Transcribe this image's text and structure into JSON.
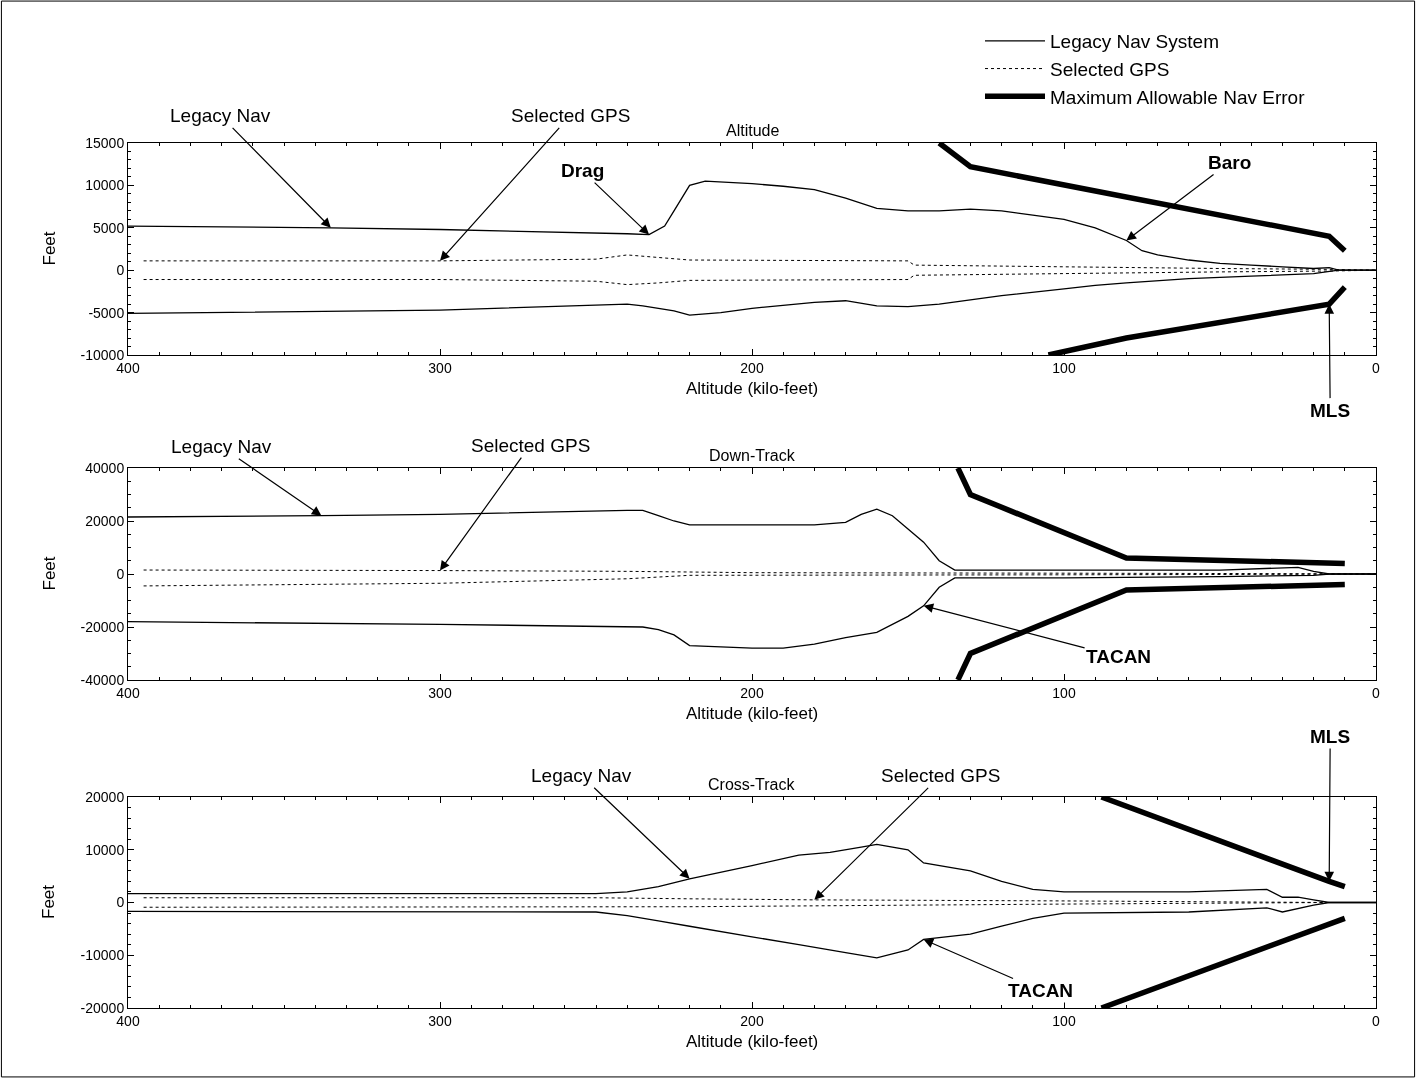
{
  "chart_data": [
    {
      "type": "line",
      "title": "Altitude",
      "xlabel": "Altitude (kilo-feet)",
      "ylabel": "Feet",
      "legend": "top right",
      "grid": false,
      "marker": "none",
      "xlim": [
        400,
        0
      ],
      "xticks": [
        400,
        300,
        200,
        100,
        0
      ],
      "ylim": [
        -10000,
        15000
      ],
      "yticks": [
        -10000,
        -5000,
        0,
        5000,
        10000,
        15000
      ],
      "series": [
        {
          "name": "Legacy Nav System",
          "color": "#000000",
          "line_style": "solid",
          "x": [
            400,
            335,
            300,
            240,
            233,
            228,
            225,
            220,
            215,
            200,
            190,
            180,
            170,
            160,
            150,
            140,
            130,
            120,
            110,
            100,
            90,
            80,
            75,
            70,
            60,
            50,
            40,
            30,
            20,
            15,
            12,
            0
          ],
          "values": [
            5200,
            5000,
            4800,
            4300,
            4200,
            5200,
            7000,
            10000,
            10500,
            10200,
            9900,
            9500,
            8500,
            7300,
            7000,
            7000,
            7200,
            7000,
            6500,
            6000,
            5000,
            3500,
            2300,
            1800,
            1200,
            800,
            600,
            400,
            200,
            300,
            0,
            0
          ]
        },
        {
          "name": "Selected GPS",
          "color": "#000000",
          "line_style": "dotted",
          "x": [
            395,
            300,
            250,
            240,
            230,
            220,
            150,
            148,
            100,
            50,
            15,
            0
          ],
          "values": [
            1100,
            1100,
            1300,
            1800,
            1500,
            1200,
            1100,
            600,
            400,
            200,
            100,
            0
          ]
        },
        {
          "name": "Maximum Allowable Nav Error",
          "color": "#000000",
          "line_style": "solid",
          "x": [
            140,
            130,
            15,
            10
          ],
          "values": [
            15000,
            12200,
            4000,
            2300
          ]
        },
        {
          "color": "#000000",
          "line_style": "solid",
          "x": [
            400,
            300,
            240,
            235,
            225,
            220,
            210,
            200,
            180,
            170,
            160,
            150,
            140,
            120,
            100,
            90,
            80,
            60,
            40,
            20,
            12,
            0
          ],
          "values": [
            -5100,
            -4700,
            -4000,
            -4200,
            -4800,
            -5300,
            -5000,
            -4500,
            -3800,
            -3600,
            -4200,
            -4300,
            -4000,
            -3000,
            -2200,
            -1800,
            -1500,
            -1000,
            -700,
            -400,
            0,
            0
          ]
        },
        {
          "color": "#000000",
          "line_style": "dotted",
          "x": [
            395,
            300,
            250,
            240,
            230,
            220,
            150,
            148,
            100,
            50,
            15,
            0
          ],
          "values": [
            -1100,
            -1100,
            -1300,
            -1700,
            -1500,
            -1200,
            -1100,
            -600,
            -400,
            -200,
            -100,
            0
          ]
        },
        {
          "color": "#000000",
          "line_style": "solid",
          "x": [
            105,
            80,
            15,
            10
          ],
          "values": [
            -10000,
            -8000,
            -4000,
            -2000
          ]
        }
      ],
      "annotations": [
        {
          "text": "Legacy Nav",
          "x": 335,
          "y": 5000
        },
        {
          "text": "Selected GPS",
          "x": 300,
          "y": 1100
        },
        {
          "text": "Drag",
          "x": 233,
          "y": 4200
        },
        {
          "text": "Baro",
          "x": 80,
          "y": 3500
        },
        {
          "text": "MLS",
          "x": 15,
          "y": -4000
        }
      ]
    },
    {
      "type": "line",
      "title": "Down-Track",
      "xlabel": "Altitude (kilo-feet)",
      "ylabel": "Feet",
      "grid": false,
      "marker": "none",
      "xlim": [
        400,
        0
      ],
      "xticks": [
        400,
        300,
        200,
        100,
        0
      ],
      "ylim": [
        -40000,
        40000
      ],
      "yticks": [
        -40000,
        -20000,
        0,
        20000,
        40000
      ],
      "series": [
        {
          "color": "#000000",
          "line_style": "solid",
          "x": [
            400,
            338,
            300,
            240,
            235,
            230,
            225,
            220,
            200,
            180,
            170,
            165,
            160,
            155,
            150,
            145,
            140,
            135,
            130,
            100,
            50,
            25,
            20,
            15,
            0
          ],
          "values": [
            21500,
            22000,
            22500,
            24000,
            24000,
            22000,
            20000,
            18500,
            18500,
            18500,
            19500,
            22500,
            24500,
            22000,
            17000,
            12000,
            5000,
            1500,
            1500,
            1500,
            1500,
            2500,
            1000,
            0,
            0
          ]
        },
        {
          "color": "#000000",
          "line_style": "dotted",
          "x": [
            395,
            300,
            240,
            200,
            100,
            15,
            0
          ],
          "values": [
            1500,
            1300,
            1000,
            500,
            300,
            100,
            0
          ]
        },
        {
          "color": "#000000",
          "line_style": "solid",
          "x": [
            134,
            130,
            80,
            10
          ],
          "values": [
            40000,
            30000,
            6000,
            4000
          ]
        },
        {
          "color": "#000000",
          "line_style": "solid",
          "x": [
            400,
            300,
            235,
            230,
            225,
            220,
            200,
            190,
            180,
            170,
            160,
            150,
            145,
            140,
            135,
            100,
            50,
            20,
            15,
            0
          ],
          "values": [
            -18000,
            -19000,
            -20000,
            -21000,
            -23000,
            -27000,
            -28000,
            -28000,
            -26500,
            -24000,
            -22000,
            -16000,
            -12000,
            -5000,
            -1500,
            -1500,
            -1000,
            -500,
            0,
            0
          ]
        },
        {
          "color": "#000000",
          "line_style": "dotted",
          "x": [
            395,
            300,
            240,
            220,
            100,
            15,
            0
          ],
          "values": [
            -4500,
            -3500,
            -1800,
            -500,
            -300,
            -100,
            0
          ]
        },
        {
          "color": "#000000",
          "line_style": "solid",
          "x": [
            134,
            130,
            80,
            10
          ],
          "values": [
            -40000,
            -30000,
            -6000,
            -4000
          ]
        }
      ],
      "annotations": [
        {
          "text": "Legacy Nav",
          "x": 338,
          "y": 22000
        },
        {
          "text": "Selected GPS",
          "x": 300,
          "y": 1300
        },
        {
          "text": "TACAN",
          "x": 145,
          "y": -12000
        }
      ]
    },
    {
      "type": "line",
      "title": "Cross-Track",
      "xlabel": "Altitude (kilo-feet)",
      "ylabel": "Feet",
      "grid": false,
      "marker": "none",
      "xlim": [
        400,
        0
      ],
      "xticks": [
        400,
        300,
        200,
        100,
        0
      ],
      "ylim": [
        -20000,
        20000
      ],
      "yticks": [
        -20000,
        -10000,
        0,
        10000,
        20000
      ],
      "series": [
        {
          "color": "#000000",
          "line_style": "solid",
          "x": [
            400,
            250,
            240,
            230,
            220,
            200,
            185,
            175,
            165,
            160,
            150,
            145,
            130,
            120,
            110,
            100,
            60,
            35,
            30,
            25,
            20,
            15,
            0
          ],
          "values": [
            1700,
            1700,
            2000,
            3000,
            4500,
            7000,
            9000,
            9500,
            10500,
            11000,
            10000,
            7500,
            6000,
            4000,
            2500,
            2000,
            2000,
            2500,
            1000,
            1000,
            500,
            0,
            0
          ]
        },
        {
          "color": "#000000",
          "line_style": "dotted",
          "x": [
            395,
            250,
            220,
            200,
            180,
            100,
            15,
            0
          ],
          "values": [
            900,
            900,
            700,
            600,
            500,
            300,
            0,
            0
          ]
        },
        {
          "color": "#000000",
          "line_style": "solid",
          "x": [
            88,
            15,
            10
          ],
          "values": [
            20000,
            4000,
            3000
          ]
        },
        {
          "color": "#000000",
          "line_style": "solid",
          "x": [
            400,
            250,
            240,
            230,
            220,
            200,
            185,
            170,
            160,
            150,
            145,
            130,
            120,
            110,
            100,
            60,
            35,
            30,
            20,
            15,
            0
          ],
          "values": [
            -1700,
            -1800,
            -2500,
            -3500,
            -4500,
            -6500,
            -8000,
            -9500,
            -10500,
            -9000,
            -7000,
            -6000,
            -4500,
            -3000,
            -2000,
            -1800,
            -1000,
            -1800,
            -500,
            0,
            0
          ]
        },
        {
          "color": "#000000",
          "line_style": "dotted",
          "x": [
            395,
            220,
            100,
            15,
            0
          ],
          "values": [
            -900,
            -800,
            -300,
            0,
            0
          ]
        },
        {
          "color": "#000000",
          "line_style": "solid",
          "x": [
            88,
            10
          ],
          "values": [
            -20000,
            -3000
          ]
        }
      ],
      "annotations": [
        {
          "text": "Legacy Nav",
          "x": 220,
          "y": 4500
        },
        {
          "text": "Selected GPS",
          "x": 180,
          "y": 500
        },
        {
          "text": "TACAN",
          "x": 145,
          "y": -7000
        },
        {
          "text": "MLS",
          "x": 15,
          "y": 4000
        }
      ]
    }
  ]
}
